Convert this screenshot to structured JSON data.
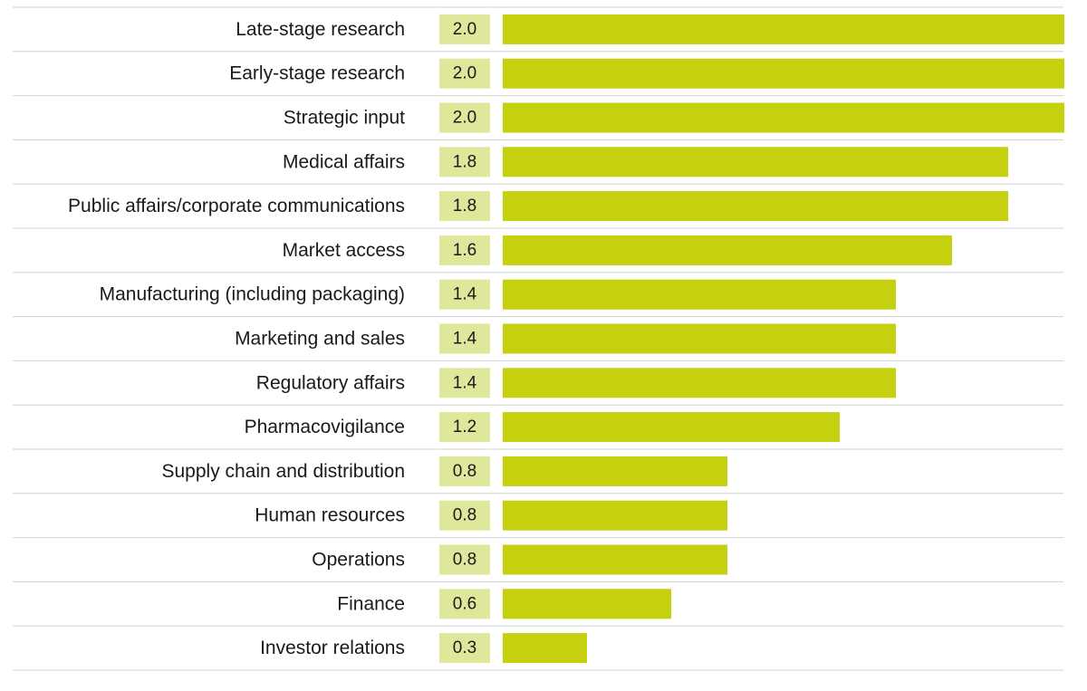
{
  "chart_data": {
    "type": "bar",
    "orientation": "horizontal",
    "categories": [
      "Late-stage research",
      "Early-stage research",
      "Strategic input",
      "Medical affairs",
      "Public affairs/corporate communications",
      "Market access",
      "Manufacturing (including packaging)",
      "Marketing and sales",
      "Regulatory affairs",
      "Pharmacovigilance",
      "Supply chain and distribution",
      "Human resources",
      "Operations",
      "Finance",
      "Investor relations"
    ],
    "values": [
      2.0,
      2.0,
      2.0,
      1.8,
      1.8,
      1.6,
      1.4,
      1.4,
      1.4,
      1.2,
      0.8,
      0.8,
      0.8,
      0.6,
      0.3
    ],
    "value_labels": [
      "2.0",
      "2.0",
      "2.0",
      "1.8",
      "1.8",
      "1.6",
      "1.4",
      "1.4",
      "1.4",
      "1.2",
      "0.8",
      "0.8",
      "0.8",
      "0.6",
      "0.3"
    ],
    "xlim": [
      0,
      2.0
    ],
    "title": "",
    "xlabel": "",
    "ylabel": "",
    "grid": false,
    "legend": "none",
    "colors": {
      "bar": "#c5d00e",
      "value_box": "#dfe79a",
      "separator": "#d0d0d0",
      "text": "#1a1a1a"
    }
  }
}
